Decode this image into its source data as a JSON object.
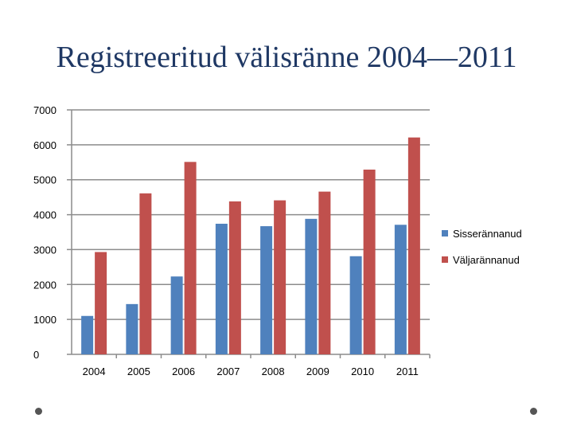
{
  "title": "Registreeritud välisränne 2004—2011",
  "chart_data": {
    "type": "bar",
    "categories": [
      "2004",
      "2005",
      "2006",
      "2007",
      "2008",
      "2009",
      "2010",
      "2011"
    ],
    "series": [
      {
        "name": "Sisserännanud",
        "color": "#4f81bd",
        "values": [
          1100,
          1440,
          2230,
          3740,
          3670,
          3880,
          2810,
          3710
        ]
      },
      {
        "name": "Väljarännanud",
        "color": "#c0504d",
        "values": [
          2930,
          4610,
          5510,
          4380,
          4410,
          4660,
          5290,
          6210
        ]
      }
    ],
    "ylim": [
      0,
      7000
    ],
    "yticks": [
      "0",
      "1000",
      "2000",
      "3000",
      "4000",
      "5000",
      "6000",
      "7000"
    ],
    "grid": true,
    "legend": "right"
  }
}
